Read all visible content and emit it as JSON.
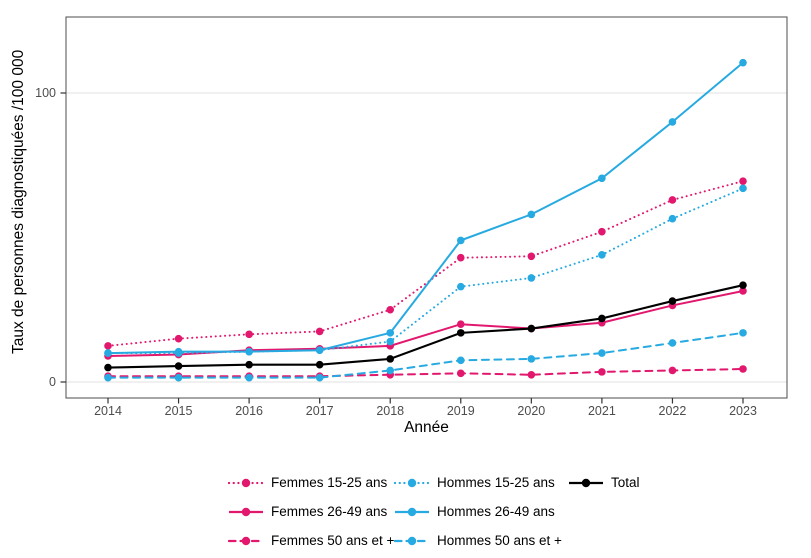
{
  "chart_data": {
    "type": "line",
    "title": "",
    "xlabel": "Année",
    "ylabel": "Taux de personnes diagnostiquées /100 000",
    "x": [
      2014,
      2015,
      2016,
      2017,
      2018,
      2019,
      2020,
      2021,
      2022,
      2023
    ],
    "y_axis_breaks": [
      0,
      100
    ],
    "y_tick_labels": [
      "0",
      "100"
    ],
    "ylim": [
      -5,
      126
    ],
    "grid": "horizontal-major-only",
    "panel_border": true,
    "legend_position": "bottom",
    "series": [
      {
        "name": "Femmes 15-25 ans",
        "color": "#E2186E",
        "line_style": "dotted",
        "values": [
          12.5,
          15,
          16.5,
          17.5,
          25,
          43,
          43.5,
          52,
          63,
          69.5
        ]
      },
      {
        "name": "Femmes 26-49 ans",
        "color": "#E2186E",
        "line_style": "solid",
        "values": [
          9,
          9.5,
          11,
          11.5,
          12.5,
          20,
          18.5,
          20.5,
          26.5,
          31.5
        ]
      },
      {
        "name": "Femmes 50 ans et +",
        "color": "#E2186E",
        "line_style": "dashed",
        "values": [
          2,
          2,
          2,
          2,
          2.5,
          3,
          2.5,
          3.5,
          4,
          4.5
        ]
      },
      {
        "name": "Hommes 15-25 ans",
        "color": "#27AAE1",
        "line_style": "dotted",
        "values": [
          10,
          10,
          10.5,
          11,
          14,
          33,
          36,
          44,
          56.5,
          67
        ]
      },
      {
        "name": "Hommes 26-49 ans",
        "color": "#27AAE1",
        "line_style": "solid",
        "values": [
          10,
          10.5,
          10.5,
          11,
          17,
          49,
          58,
          70.5,
          90,
          110.5
        ]
      },
      {
        "name": "Hommes 50 ans et +",
        "color": "#27AAE1",
        "line_style": "dashed",
        "values": [
          1.5,
          1.5,
          1.5,
          1.5,
          4,
          7.5,
          8,
          10,
          13.5,
          17
        ]
      },
      {
        "name": "Total",
        "color": "#000000",
        "line_style": "solid",
        "values": [
          5,
          5.5,
          6,
          6,
          8,
          17,
          18.5,
          22,
          28,
          33.5
        ]
      }
    ],
    "colors": {
      "femmes": "#E2186E",
      "hommes": "#27AAE1",
      "total": "#000000",
      "gridline": "#E8E8E8",
      "panel_border": "#4D4D4D",
      "tick_label": "#4D4D4D"
    }
  }
}
